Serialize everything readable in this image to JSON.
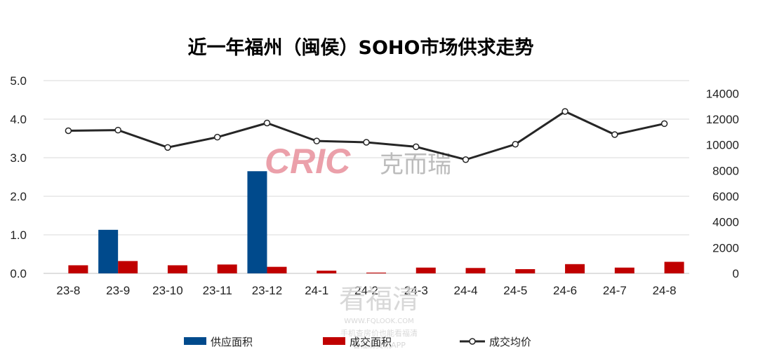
{
  "chart_data": {
    "type": "bar",
    "title": "近一年福州（闽侯）SOHO市场供求走势",
    "categories": [
      "23-8",
      "23-9",
      "23-10",
      "23-11",
      "23-12",
      "24-1",
      "24-2",
      "24-3",
      "24-4",
      "24-5",
      "24-6",
      "24-7",
      "24-8"
    ],
    "y_left": {
      "ylim": [
        0,
        5
      ],
      "ticks": [
        "0.0",
        "1.0",
        "2.0",
        "3.0",
        "4.0",
        "5.0"
      ]
    },
    "y_right": {
      "ylim": [
        0,
        15000
      ],
      "ticks": [
        "0",
        "2000",
        "4000",
        "6000",
        "8000",
        "10000",
        "12000",
        "14000"
      ]
    },
    "series": [
      {
        "name": "供应面积",
        "type": "bar",
        "axis": "left",
        "color": "#004a8c",
        "values": [
          0,
          1.13,
          0,
          0,
          2.65,
          0,
          0,
          0,
          0,
          0,
          0,
          0,
          0
        ]
      },
      {
        "name": "成交面积",
        "type": "bar",
        "axis": "left",
        "color": "#c00000",
        "values": [
          0.21,
          0.32,
          0.21,
          0.23,
          0.17,
          0.07,
          0.02,
          0.15,
          0.14,
          0.11,
          0.24,
          0.15,
          0.3
        ]
      },
      {
        "name": "成交均价",
        "type": "line",
        "axis": "right",
        "color": "#262626",
        "values": [
          11100,
          11150,
          9800,
          10600,
          11700,
          10300,
          10200,
          9850,
          8850,
          10050,
          12600,
          10800,
          11650
        ]
      }
    ],
    "legend_position": "bottom",
    "grid": true
  },
  "watermarks": {
    "brand_latin": "CRIC",
    "brand_cn": "克而瑞",
    "site_cn": "看福清",
    "site_url": "WWW.FQLOOK.COM",
    "site_slogan": "手机查房价也能看福清",
    "site_slogan2": "看福清资讯APP"
  }
}
